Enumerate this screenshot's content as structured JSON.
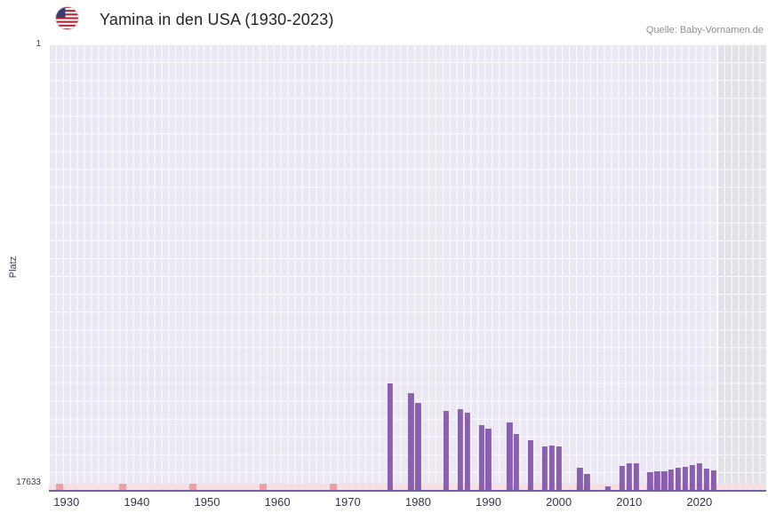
{
  "header": {
    "title": "Yamina in den USA (1930-2023)",
    "source": "Quelle: Baby-Vornamen.de",
    "flag_icon": "us-flag-icon"
  },
  "chart_data": {
    "type": "bar",
    "title": "Yamina in den USA (1930-2023)",
    "xlabel": "",
    "ylabel": "Platz",
    "y_axis": {
      "min": 1,
      "max": 17633,
      "inverted": true,
      "top_tick": "1",
      "bottom_tick": "17633"
    },
    "x_domain": [
      1928,
      2030
    ],
    "x_ticks": [
      "1930",
      "1940",
      "1950",
      "1960",
      "1970",
      "1980",
      "1990",
      "2000",
      "2010",
      "2020"
    ],
    "no_data_marker_years": [
      1929,
      1938,
      1948,
      1958,
      1968
    ],
    "future_band_start": 2023,
    "grid": true,
    "legend_position": "none",
    "series": [
      {
        "name": "Platz",
        "points": [
          {
            "year": 1976,
            "rank": 13430
          },
          {
            "year": 1979,
            "rank": 13820
          },
          {
            "year": 1980,
            "rank": 14180
          },
          {
            "year": 1984,
            "rank": 14500
          },
          {
            "year": 1986,
            "rank": 14430
          },
          {
            "year": 1987,
            "rank": 14570
          },
          {
            "year": 1989,
            "rank": 15070
          },
          {
            "year": 1990,
            "rank": 15210
          },
          {
            "year": 1993,
            "rank": 14960
          },
          {
            "year": 1994,
            "rank": 15425
          },
          {
            "year": 1996,
            "rank": 15675
          },
          {
            "year": 1998,
            "rank": 15920
          },
          {
            "year": 1999,
            "rank": 15890
          },
          {
            "year": 2000,
            "rank": 15920
          },
          {
            "year": 2003,
            "rank": 16740
          },
          {
            "year": 2004,
            "rank": 16990
          },
          {
            "year": 2007,
            "rank": 17490
          },
          {
            "year": 2009,
            "rank": 16670
          },
          {
            "year": 2010,
            "rank": 16565
          },
          {
            "year": 2011,
            "rank": 16565
          },
          {
            "year": 2013,
            "rank": 16920
          },
          {
            "year": 2014,
            "rank": 16885
          },
          {
            "year": 2015,
            "rank": 16885
          },
          {
            "year": 2016,
            "rank": 16815
          },
          {
            "year": 2017,
            "rank": 16740
          },
          {
            "year": 2018,
            "rank": 16705
          },
          {
            "year": 2019,
            "rank": 16635
          },
          {
            "year": 2020,
            "rank": 16565
          },
          {
            "year": 2021,
            "rank": 16780
          },
          {
            "year": 2022,
            "rank": 16850
          }
        ]
      }
    ],
    "colors": {
      "bar": "#8a5fb0",
      "plot_bg": "#ebe8f4",
      "grid_line": "#ffffff",
      "no_data_band": "#f6dee3",
      "no_data_marker": "#eda0a4",
      "future_band": "#e4e2e8",
      "axis_line": "#7263a8"
    }
  }
}
